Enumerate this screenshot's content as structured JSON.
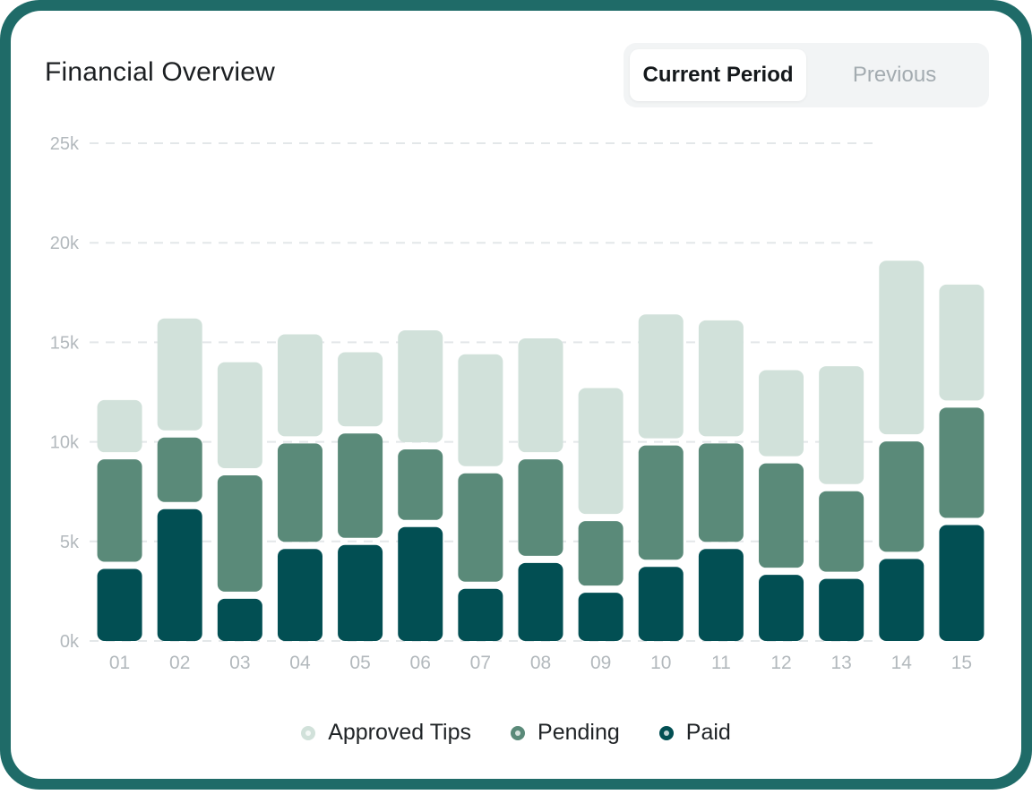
{
  "header": {
    "title": "Financial Overview",
    "toggle": {
      "current_label": "Current Period",
      "previous_label": "Previous"
    }
  },
  "colors": {
    "approved_tips": "#d1e1da",
    "pending": "#5a8a79",
    "paid": "#024f53",
    "grid": "#e3e7e9",
    "tick": "#b3b9bd"
  },
  "chart_data": {
    "type": "bar",
    "stacked": true,
    "categories": [
      "01",
      "02",
      "03",
      "04",
      "05",
      "06",
      "07",
      "08",
      "09",
      "10",
      "11",
      "12",
      "13",
      "14",
      "15"
    ],
    "y_ticks": [
      "0k",
      "5k",
      "10k",
      "15k",
      "20k",
      "25k"
    ],
    "ylim": [
      0,
      25000
    ],
    "grid": true,
    "legend_position": "bottom",
    "series": [
      {
        "name": "Paid",
        "values": [
          3800,
          6800,
          2300,
          4800,
          5000,
          5900,
          2800,
          4100,
          2600,
          3900,
          4800,
          3500,
          3300,
          4300,
          6000
        ]
      },
      {
        "name": "Pending",
        "values": [
          5500,
          3600,
          6200,
          5300,
          5600,
          3900,
          5800,
          5200,
          3600,
          6100,
          5300,
          5600,
          4400,
          5900,
          5900
        ]
      },
      {
        "name": "Approved Tips",
        "values": [
          2800,
          5800,
          5500,
          5300,
          3900,
          5800,
          5800,
          5900,
          6500,
          6400,
          6000,
          4500,
          6100,
          8900,
          6000
        ]
      }
    ]
  }
}
